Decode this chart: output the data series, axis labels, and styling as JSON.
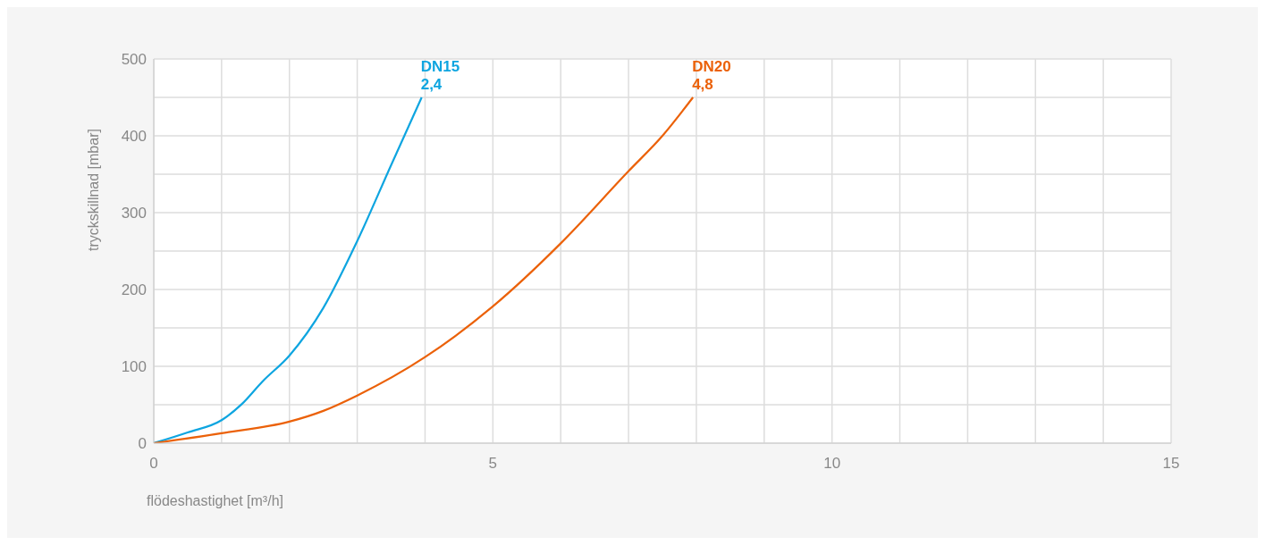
{
  "chart_data": {
    "type": "line",
    "xlabel": "flödeshastighet [m³/h]",
    "ylabel": "tryckskillnad [mbar]",
    "xlim": [
      0,
      15
    ],
    "ylim": [
      0,
      500
    ],
    "xticks": [
      0,
      {
        "value": 1,
        "label": null
      },
      {
        "value": 2,
        "label": null
      },
      {
        "value": 3,
        "label": null
      },
      {
        "value": 4,
        "label": null
      },
      5,
      {
        "value": 6,
        "label": null
      },
      {
        "value": 7,
        "label": null
      },
      {
        "value": 8,
        "label": null
      },
      {
        "value": 9,
        "label": null
      },
      10,
      {
        "value": 11,
        "label": null
      },
      {
        "value": 12,
        "label": null
      },
      {
        "value": 13,
        "label": null
      },
      {
        "value": 14,
        "label": null
      },
      15
    ],
    "yticks": [
      0,
      {
        "value": 50,
        "label": null
      },
      100,
      {
        "value": 150,
        "label": null
      },
      200,
      {
        "value": 250,
        "label": null
      },
      300,
      {
        "value": 350,
        "label": null
      },
      400,
      {
        "value": 450,
        "label": null
      },
      500
    ],
    "grid": true,
    "marker": "none",
    "line_style": "solid",
    "series": [
      {
        "name": "DN15",
        "color": "#0ea5e0",
        "x": [
          0,
          0.5,
          1,
          1.3,
          1.6,
          2,
          2.5,
          3,
          3.5,
          3.95
        ],
        "values": [
          0,
          14,
          30,
          51,
          80,
          114,
          176,
          263,
          362,
          450
        ]
      },
      {
        "name": "DN20",
        "color": "#eb6109",
        "x": [
          0,
          1,
          2,
          2.5,
          3,
          4,
          5,
          6,
          7,
          7.5,
          7.95
        ],
        "values": [
          0,
          13,
          28,
          42,
          62,
          112,
          178,
          260,
          354,
          400,
          450
        ]
      }
    ],
    "annotations": [
      {
        "text": "2,4",
        "x": 3.95,
        "y": 450
      },
      {
        "text": "4,8",
        "x": 7.95,
        "y": 450
      }
    ]
  }
}
